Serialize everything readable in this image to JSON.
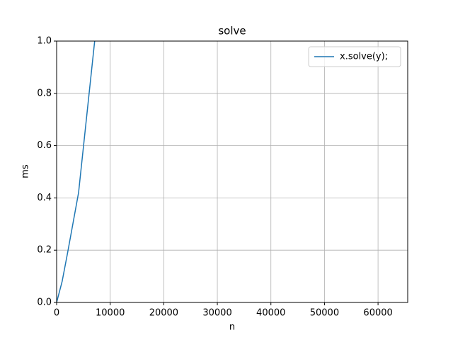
{
  "chart_data": {
    "type": "line",
    "title": "solve",
    "x_label": "n",
    "y_label": "ms",
    "x": [
      0,
      1024,
      2048,
      4096,
      8192
    ],
    "series": [
      {
        "name": "x.solve(y);",
        "color": "#1f77b4",
        "values": [
          0,
          0.08,
          0.19,
          0.42,
          1.21
        ]
      }
    ],
    "xlim": [
      0,
      65536
    ],
    "xticks": [
      0,
      10000,
      20000,
      30000,
      40000,
      50000,
      60000
    ],
    "ylim": [
      0,
      1.0
    ],
    "yticks": [
      {
        "value": 0,
        "label": "0.0"
      },
      0.2,
      0.4,
      0.6,
      0.8,
      {
        "value": 1,
        "label": "1.0"
      }
    ],
    "grid": true,
    "legend": "upper right"
  }
}
